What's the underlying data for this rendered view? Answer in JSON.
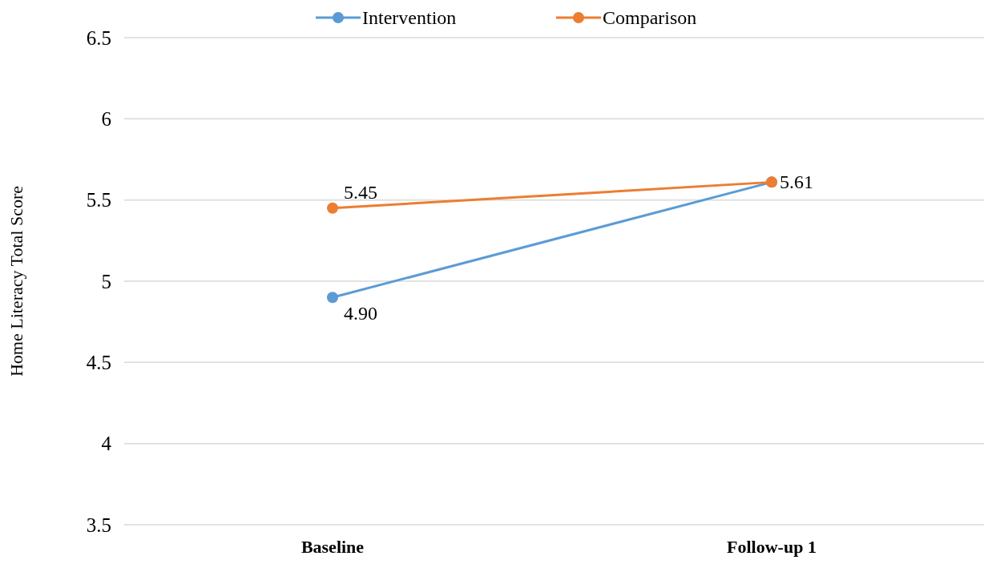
{
  "chart_data": {
    "type": "line",
    "ylabel": "Home Literacy Total Score",
    "categories": [
      "Baseline",
      "Follow-up 1"
    ],
    "series": [
      {
        "name": "Intervention",
        "color": "#5b9bd5",
        "values": [
          4.9,
          5.61
        ],
        "value_labels": [
          "4.90",
          null
        ]
      },
      {
        "name": "Comparison",
        "color": "#ed7d31",
        "values": [
          5.45,
          5.61
        ],
        "value_labels": [
          "5.45",
          "5.61"
        ]
      }
    ],
    "ylim": [
      3.5,
      6.5
    ],
    "yticks": [
      3.5,
      4,
      4.5,
      5,
      5.5,
      6,
      6.5
    ],
    "grid": "y",
    "legend": "top",
    "marker": "circle",
    "line_style": "solid"
  }
}
